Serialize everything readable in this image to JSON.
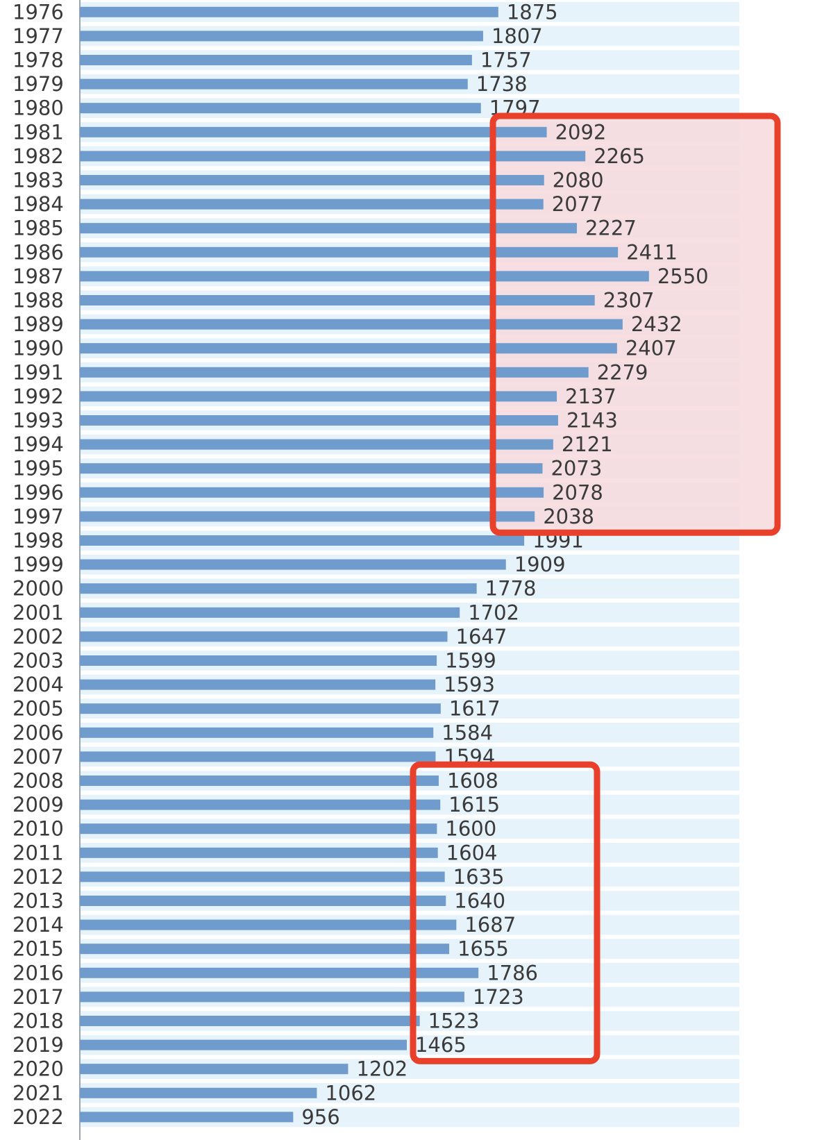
{
  "chart_data": {
    "type": "bar",
    "orientation": "horizontal",
    "title": "",
    "xlabel": "",
    "ylabel": "",
    "xlim": [
      0,
      2700
    ],
    "grid": false,
    "legend": "none",
    "colors": {
      "bar": "#6f9ccc",
      "row_stripe": "#e7f3fa",
      "highlight_border": "#e8402b",
      "highlight_fill": "#f7d9dd",
      "label_text": "#3a3a3a"
    },
    "categories": [
      "1976",
      "1977",
      "1978",
      "1979",
      "1980",
      "1981",
      "1982",
      "1983",
      "1984",
      "1985",
      "1986",
      "1987",
      "1988",
      "1989",
      "1990",
      "1991",
      "1992",
      "1993",
      "1994",
      "1995",
      "1996",
      "1997",
      "1998",
      "1999",
      "2000",
      "2001",
      "2002",
      "2003",
      "2004",
      "2005",
      "2006",
      "2007",
      "2008",
      "2009",
      "2010",
      "2011",
      "2012",
      "2013",
      "2014",
      "2015",
      "2016",
      "2017",
      "2018",
      "2019",
      "2020",
      "2021",
      "2022"
    ],
    "values": [
      1875,
      1807,
      1757,
      1738,
      1797,
      2092,
      2265,
      2080,
      2077,
      2227,
      2411,
      2550,
      2307,
      2432,
      2407,
      2279,
      2137,
      2143,
      2121,
      2073,
      2078,
      2038,
      1991,
      1909,
      1778,
      1702,
      1647,
      1599,
      1593,
      1617,
      1584,
      1594,
      1608,
      1615,
      1600,
      1604,
      1635,
      1640,
      1687,
      1655,
      1786,
      1723,
      1523,
      1465,
      1202,
      1062,
      956
    ],
    "highlights": [
      {
        "from": "1981",
        "to": "1997"
      },
      {
        "from": "2008",
        "to": "2019"
      }
    ]
  }
}
